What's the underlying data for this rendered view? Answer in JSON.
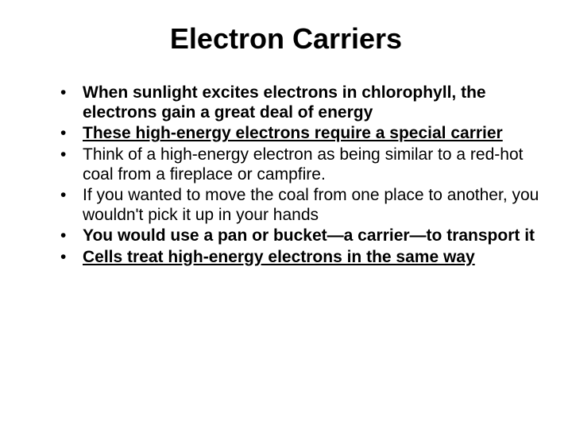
{
  "title": "Electron Carriers",
  "bullets": [
    {
      "text": "When sunlight excites electrons in chlorophyll, the electrons gain a great deal of energy",
      "style": "bold"
    },
    {
      "text": "These high-energy electrons require a special carrier",
      "style": "bold-under"
    },
    {
      "text": "Think of a high-energy electron as being similar to a red-hot coal from a fireplace or campfire.",
      "style": "normal"
    },
    {
      "text": "If you wanted to move the coal from one place to another, you wouldn't pick it up in your hands",
      "style": "normal"
    },
    {
      "text": "You would use a pan or bucket—a carrier—to transport it",
      "style": "bold"
    },
    {
      "text": "Cells treat high-energy electrons in the same way",
      "style": "bold-under"
    }
  ],
  "colors": {
    "background": "#ffffff",
    "text": "#000000"
  },
  "fonts": {
    "title_size": 36,
    "bullet_size": 21
  }
}
